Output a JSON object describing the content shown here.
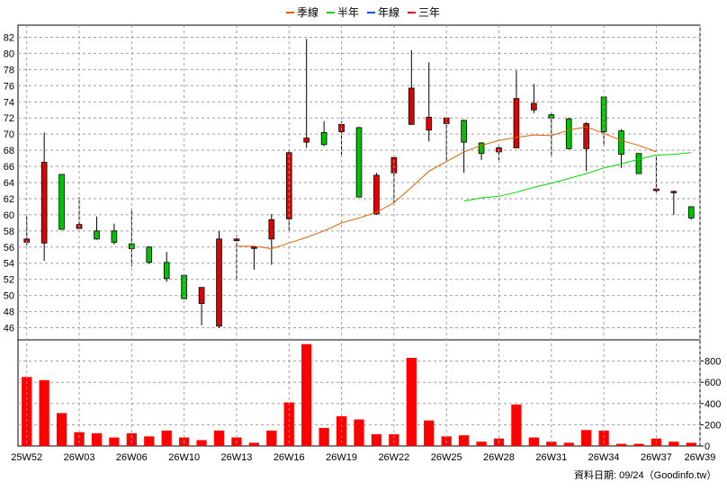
{
  "legend": [
    {
      "label": "季線",
      "color": "#e06000"
    },
    {
      "label": "半年",
      "color": "#00d800"
    },
    {
      "label": "年線",
      "color": "#0050e0"
    },
    {
      "label": "三年",
      "color": "#e00000"
    }
  ],
  "footer_text": "資料日期: 09/24（Goodinfo.tw）",
  "chart_data": [
    {
      "type": "candlestick",
      "title": "",
      "ylim": [
        44.5,
        83.5
      ],
      "yticks": [
        46,
        48,
        50,
        52,
        54,
        56,
        58,
        60,
        62,
        64,
        66,
        68,
        70,
        72,
        74,
        76,
        78,
        80,
        82
      ],
      "grid": true,
      "up_color": "#e00000",
      "down_color": "#00c000",
      "candles": [
        {
          "o": 56.6,
          "h": 59.8,
          "l": 56.2,
          "c": 57.0
        },
        {
          "o": 56.5,
          "h": 70.2,
          "l": 54.3,
          "c": 66.5
        },
        {
          "o": 65.0,
          "h": 65.0,
          "l": 58.2,
          "c": 58.2
        },
        {
          "o": 58.3,
          "h": 62.2,
          "l": 58.3,
          "c": 58.8
        },
        {
          "o": 58.0,
          "h": 59.8,
          "l": 56.9,
          "c": 57.0
        },
        {
          "o": 58.0,
          "h": 58.9,
          "l": 56.3,
          "c": 56.6
        },
        {
          "o": 56.4,
          "h": 60.8,
          "l": 53.6,
          "c": 55.8
        },
        {
          "o": 56.0,
          "h": 56.1,
          "l": 53.9,
          "c": 54.1
        },
        {
          "o": 54.1,
          "h": 55.4,
          "l": 51.7,
          "c": 52.1
        },
        {
          "o": 52.5,
          "h": 52.5,
          "l": 49.6,
          "c": 49.6
        },
        {
          "o": 49.0,
          "h": 51.0,
          "l": 46.3,
          "c": 51.0
        },
        {
          "o": 46.2,
          "h": 58.0,
          "l": 46.0,
          "c": 57.0
        },
        {
          "o": 56.8,
          "h": 57.5,
          "l": 51.9,
          "c": 57.0
        },
        {
          "o": 55.9,
          "h": 56.1,
          "l": 53.2,
          "c": 56.0
        },
        {
          "o": 57.0,
          "h": 60.1,
          "l": 53.8,
          "c": 59.4
        },
        {
          "o": 59.5,
          "h": 68.0,
          "l": 58.1,
          "c": 67.7
        },
        {
          "o": 69.0,
          "h": 81.8,
          "l": 68.3,
          "c": 69.5
        },
        {
          "o": 70.2,
          "h": 71.6,
          "l": 68.5,
          "c": 68.7
        },
        {
          "o": 70.3,
          "h": 71.6,
          "l": 67.4,
          "c": 71.2
        },
        {
          "o": 70.8,
          "h": 70.9,
          "l": 62.2,
          "c": 62.2
        },
        {
          "o": 60.1,
          "h": 65.2,
          "l": 60.0,
          "c": 64.9
        },
        {
          "o": 65.2,
          "h": 67.2,
          "l": 61.5,
          "c": 67.1
        },
        {
          "o": 71.2,
          "h": 80.4,
          "l": 71.2,
          "c": 75.7
        },
        {
          "o": 70.5,
          "h": 78.9,
          "l": 69.1,
          "c": 72.1
        },
        {
          "o": 71.3,
          "h": 72.0,
          "l": 66.6,
          "c": 72.0
        },
        {
          "o": 71.7,
          "h": 71.8,
          "l": 65.2,
          "c": 69.0
        },
        {
          "o": 68.9,
          "h": 69.0,
          "l": 66.8,
          "c": 67.6
        },
        {
          "o": 67.8,
          "h": 68.8,
          "l": 66.6,
          "c": 68.3
        },
        {
          "o": 68.3,
          "h": 77.9,
          "l": 68.3,
          "c": 74.4
        },
        {
          "o": 73.0,
          "h": 76.2,
          "l": 72.6,
          "c": 73.8
        },
        {
          "o": 72.4,
          "h": 72.6,
          "l": 67.2,
          "c": 72.0
        },
        {
          "o": 71.9,
          "h": 72.0,
          "l": 68.1,
          "c": 68.2
        },
        {
          "o": 68.2,
          "h": 71.5,
          "l": 65.4,
          "c": 71.3
        },
        {
          "o": 74.6,
          "h": 74.6,
          "l": 68.5,
          "c": 70.3
        },
        {
          "o": 70.4,
          "h": 70.6,
          "l": 65.8,
          "c": 67.5
        },
        {
          "o": 67.6,
          "h": 67.6,
          "l": 65.1,
          "c": 65.1
        },
        {
          "o": 63.0,
          "h": 67.3,
          "l": 62.8,
          "c": 63.2
        },
        {
          "o": 62.9,
          "h": 63.0,
          "l": 60.0,
          "c": 62.9
        },
        {
          "o": 61.0,
          "h": 61.0,
          "l": 59.4,
          "c": 59.6
        }
      ],
      "series": [
        {
          "name": "季線",
          "color": "#e06000",
          "start": 12,
          "values": [
            56.1,
            56.1,
            55.8,
            56.5,
            57.2,
            58.0,
            59.0,
            59.6,
            60.3,
            61.5,
            63.4,
            65.4,
            66.6,
            67.8,
            68.6,
            69.2,
            69.6,
            69.9,
            69.8,
            70.5,
            70.9,
            70.1,
            69.2,
            68.6,
            67.8
          ]
        },
        {
          "name": "半年",
          "color": "#00d800",
          "start": 25,
          "values": [
            61.7,
            62.1,
            62.3,
            62.8,
            63.4,
            63.9,
            64.5,
            65.1,
            65.8,
            66.3,
            66.9,
            67.4,
            67.5,
            67.7
          ]
        }
      ]
    },
    {
      "type": "bar",
      "title": "",
      "ylim": [
        0,
        1000
      ],
      "yticks": [
        0,
        200,
        400,
        600,
        800
      ],
      "xticklabels": [
        "25W52",
        "26W03",
        "26W06",
        "26W10",
        "26W13",
        "26W16",
        "26W19",
        "26W22",
        "26W25",
        "26W28",
        "26W31",
        "26W34",
        "26W37",
        "26W39"
      ],
      "xtick_positions": [
        0,
        3,
        6,
        9,
        12,
        15,
        18,
        21,
        24,
        27,
        30,
        33,
        36,
        38.5
      ],
      "color": "#ff0000",
      "values": [
        650,
        620,
        310,
        130,
        120,
        80,
        120,
        90,
        145,
        80,
        55,
        145,
        80,
        30,
        145,
        410,
        960,
        170,
        280,
        250,
        110,
        110,
        830,
        240,
        90,
        100,
        40,
        70,
        390,
        80,
        40,
        30,
        150,
        145,
        20,
        20,
        70,
        40,
        30
      ]
    }
  ]
}
